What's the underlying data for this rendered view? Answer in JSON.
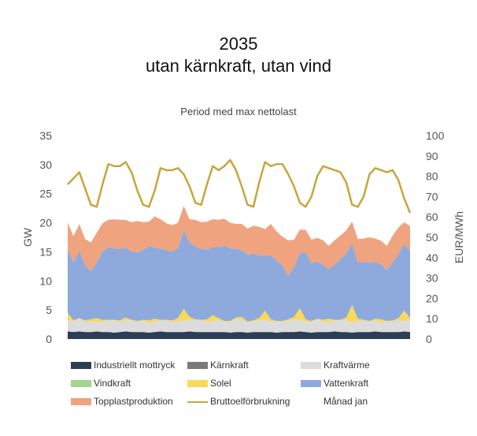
{
  "title_line1": "2035",
  "title_line2": "utan kärnkraft, utan vind",
  "chart_data": {
    "type": "area",
    "subtitle": "Period med max nettolast",
    "ylabel_left": "GW",
    "ylabel_right": "EUR/MWh",
    "ylim_left": [
      0,
      35
    ],
    "yticks_left": [
      "0",
      "5",
      "10",
      "15",
      "20",
      "25",
      "30",
      "35"
    ],
    "ylim_right": [
      0,
      100
    ],
    "yticks_right": [
      "0",
      "10",
      "20",
      "30",
      "40",
      "50",
      "60",
      "70",
      "80",
      "90",
      "100"
    ],
    "stack_order": [
      "Industriellt mottryck",
      "Kärnkraft",
      "Kraftvärme",
      "Vindkraft",
      "Solel",
      "Vattenkraft",
      "Topplastproduktion"
    ],
    "series": [
      {
        "name": "Industriellt mottryck",
        "color": "#2c3e56",
        "values": [
          1.3,
          1.2,
          1.3,
          1.2,
          1.2,
          1.3,
          1.2,
          1.2,
          1.1,
          1.2,
          1.3,
          1.2,
          1.2,
          1.2,
          1.1,
          1.2,
          1.3,
          1.2,
          1.2,
          1.2,
          1.2,
          1.3,
          1.2,
          1.2,
          1.2,
          1.2,
          1.2,
          1.2,
          1.1,
          1.2,
          1.2,
          1.1,
          1.2,
          1.2,
          1.2,
          1.2,
          1.1,
          1.2,
          1.2,
          1.2,
          1.3,
          1.2,
          1.1,
          1.2,
          1.2,
          1.2,
          1.3,
          1.2,
          1.2,
          1.1,
          1.2,
          1.2,
          1.2,
          1.3,
          1.2,
          1.2,
          1.2,
          1.2,
          1.3,
          1.2
        ]
      },
      {
        "name": "Kärnkraft",
        "color": "#7a7a7a",
        "values": [
          0,
          0,
          0,
          0,
          0,
          0,
          0,
          0,
          0,
          0,
          0,
          0,
          0,
          0,
          0,
          0,
          0,
          0,
          0,
          0,
          0,
          0,
          0,
          0,
          0,
          0,
          0,
          0,
          0,
          0,
          0,
          0,
          0,
          0,
          0,
          0,
          0,
          0,
          0,
          0,
          0,
          0,
          0,
          0,
          0,
          0,
          0,
          0,
          0,
          0,
          0,
          0,
          0,
          0,
          0,
          0,
          0,
          0,
          0,
          0
        ]
      },
      {
        "name": "Kraftvärme",
        "color": "#dcdcdc",
        "values": [
          2.0,
          1.8,
          2.2,
          1.9,
          1.8,
          1.7,
          1.9,
          2.0,
          2.1,
          1.8,
          1.9,
          2.0,
          1.8,
          1.9,
          1.7,
          1.8,
          1.9,
          2.0,
          1.8,
          1.8,
          2.0,
          1.9,
          2.1,
          2.0,
          1.8,
          1.9,
          2.1,
          1.8,
          1.9,
          2.2,
          2.0,
          1.8,
          1.9,
          2.0,
          2.1,
          1.8,
          1.9,
          1.8,
          1.9,
          2.1,
          2.0,
          1.8,
          1.9,
          2.2,
          1.8,
          1.7,
          1.9,
          2.0,
          2.1,
          1.8,
          1.9,
          2.0,
          1.8,
          1.9,
          1.7,
          1.8,
          1.9,
          2.0,
          1.8,
          2.1
        ]
      },
      {
        "name": "Vindkraft",
        "color": "#a4d490",
        "values": [
          0,
          0,
          0,
          0,
          0,
          0,
          0,
          0,
          0,
          0,
          0,
          0,
          0,
          0,
          0,
          0,
          0,
          0,
          0,
          0,
          0,
          0,
          0,
          0,
          0,
          0,
          0,
          0,
          0,
          0,
          0,
          0,
          0,
          0,
          0,
          0,
          0,
          0,
          0,
          0,
          0,
          0,
          0,
          0,
          0,
          0,
          0,
          0,
          0,
          0,
          0,
          0,
          0,
          0,
          0,
          0,
          0,
          0,
          0,
          0
        ]
      },
      {
        "name": "Solel",
        "color": "#f9d95a",
        "values": [
          1.2,
          0.2,
          0.1,
          0.1,
          0.4,
          0.6,
          0.2,
          0.1,
          0.1,
          0.2,
          0.5,
          0.1,
          0.1,
          0.2,
          0.4,
          0.5,
          0.1,
          0.1,
          0.2,
          0.6,
          2.0,
          0.6,
          0.1,
          0.1,
          0.4,
          1.0,
          0.3,
          0.1,
          0.1,
          0.3,
          0.6,
          0.1,
          0.1,
          0.4,
          1.6,
          0.4,
          0.1,
          0.1,
          0.3,
          0.5,
          2.0,
          0.4,
          0.1,
          0.1,
          0.3,
          0.6,
          0.1,
          0.1,
          0.4,
          3.0,
          0.4,
          0.1,
          0.1,
          0.3,
          0.5,
          0.1,
          0.1,
          0.4,
          1.8,
          0.3
        ]
      },
      {
        "name": "Vattenkraft",
        "color": "#8eaadd",
        "values": [
          11.0,
          10.0,
          11.6,
          9.5,
          8.3,
          9.5,
          11.8,
          12.5,
          12.3,
          12.3,
          12.0,
          11.8,
          11.8,
          12.0,
          12.8,
          12.2,
          12.3,
          12.0,
          11.8,
          12.0,
          13.5,
          12.8,
          12.5,
          12.2,
          12.0,
          11.7,
          12.2,
          13.0,
          12.5,
          11.8,
          11.5,
          11.5,
          11.5,
          10.8,
          9.5,
          11.0,
          10.5,
          9.5,
          7.5,
          8.5,
          9.5,
          11.5,
          10.0,
          9.8,
          9.5,
          8.5,
          9.5,
          10.5,
          11.0,
          10.5,
          9.7,
          10.0,
          10.0,
          9.8,
          9.5,
          8.8,
          10.0,
          11.0,
          11.5,
          11.5
        ]
      },
      {
        "name": "Topplastproduktion",
        "color": "#f0a37f",
        "values": [
          4.5,
          4.5,
          4.6,
          4.5,
          4.9,
          5.2,
          4.8,
          4.7,
          5.0,
          5.0,
          4.8,
          5.0,
          5.4,
          4.8,
          4.2,
          5.4,
          5.0,
          4.6,
          4.6,
          4.4,
          4.2,
          4.0,
          4.6,
          4.6,
          4.8,
          4.8,
          4.7,
          4.6,
          4.4,
          4.3,
          4.5,
          4.5,
          4.8,
          4.9,
          4.5,
          5.4,
          4.9,
          5.0,
          6.1,
          4.8,
          4.0,
          3.9,
          4.0,
          4.1,
          4.2,
          4.0,
          4.2,
          4.0,
          4.0,
          3.8,
          4.0,
          4.0,
          4.4,
          4.0,
          4.0,
          4.1,
          4.6,
          4.6,
          3.7,
          4.3
        ]
      },
      {
        "name": "Bruttoelförbrukning",
        "color": "#c8a53c",
        "axis": "right",
        "values": [
          76,
          79,
          82,
          74,
          66,
          65,
          76,
          86,
          85,
          85,
          87,
          82,
          73,
          66,
          65,
          73,
          84,
          83,
          83,
          84,
          81,
          75,
          67,
          66,
          76,
          85,
          83,
          85,
          88,
          83,
          75,
          66,
          65,
          77,
          87,
          85,
          86,
          86,
          81,
          75,
          67,
          65,
          70,
          80,
          85,
          84,
          83,
          82,
          77,
          66,
          65,
          70,
          81,
          84,
          83,
          82,
          83,
          78,
          69,
          62
        ]
      },
      {
        "name": "Månad jan",
        "color": "#ffffff"
      }
    ]
  }
}
